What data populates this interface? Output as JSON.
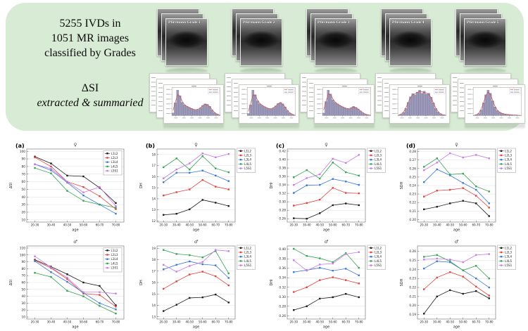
{
  "top_panel": {
    "bg_color": "#d8ebd4",
    "dataset_text": [
      "5255 IVDs in",
      "1051 MR images",
      "classified by Grades"
    ],
    "delta_si_line1": "ΔSI",
    "delta_si_line2": "extracted & summaried",
    "grades": [
      {
        "label": "Pfirrmann Grade 1"
      },
      {
        "label": "Pfirrmann Grade 2"
      },
      {
        "label": "Pfirrmann Grade 3"
      },
      {
        "label": "Pfirrmann Grade 4"
      },
      {
        "label": "Pfirrmann Grade 5"
      }
    ],
    "hist_bar_color": "#9b98b8",
    "hist_curve_color": "#d0453f",
    "histograms": [
      {
        "grade": "Pfirrmann Grade 1",
        "shape": "bimodal",
        "bars": [
          0.1,
          0.5,
          1.0,
          0.78,
          0.52,
          0.42,
          0.36,
          0.32,
          0.28,
          0.24,
          0.22,
          0.24,
          0.3,
          0.4,
          0.46,
          0.44,
          0.36,
          0.22,
          0.12,
          0.06,
          0.03
        ]
      },
      {
        "grade": "Pfirrmann Grade 2",
        "shape": "bimodal",
        "bars": [
          0.08,
          0.42,
          1.0,
          0.82,
          0.58,
          0.46,
          0.4,
          0.35,
          0.3,
          0.27,
          0.26,
          0.3,
          0.38,
          0.48,
          0.52,
          0.46,
          0.34,
          0.2,
          0.1,
          0.05,
          0.02
        ]
      },
      {
        "grade": "Pfirrmann Grade 3",
        "shape": "right-skewed",
        "bars": [
          0.1,
          0.55,
          1.0,
          0.85,
          0.62,
          0.52,
          0.46,
          0.4,
          0.35,
          0.31,
          0.28,
          0.26,
          0.3,
          0.36,
          0.32,
          0.26,
          0.18,
          0.11,
          0.06,
          0.03,
          0.02
        ]
      },
      {
        "grade": "Pfirrmann Grade 4",
        "shape": "broad",
        "bars": [
          0.02,
          0.05,
          0.12,
          0.28,
          0.52,
          0.74,
          0.86,
          0.82,
          0.92,
          1.0,
          0.88,
          0.96,
          0.84,
          0.88,
          0.72,
          0.5,
          0.28,
          0.14,
          0.07,
          0.03,
          0.02
        ]
      },
      {
        "grade": "Pfirrmann Grade 5",
        "shape": "narrow-peak",
        "bars": [
          0.01,
          0.03,
          0.08,
          0.22,
          0.5,
          0.82,
          1.0,
          0.88,
          0.58,
          0.34,
          0.2,
          0.13,
          0.09,
          0.06,
          0.05,
          0.04,
          0.03,
          0.02,
          0.02,
          0.01,
          0.01
        ]
      }
    ]
  },
  "chart_data": [
    {
      "type": "line",
      "panel_label": "(a)",
      "title": "♀",
      "xlabel": "age",
      "ylabel": "ΔSI",
      "categories": [
        "20-30",
        "30-40",
        "40-50",
        "50-60",
        "60-70",
        "70-80"
      ],
      "ylim": [
        7,
        103
      ],
      "yticks": [
        "10",
        "20",
        "30",
        "40",
        "50",
        "60",
        "70",
        "80",
        "90",
        "100"
      ],
      "legend_inside": true,
      "grid": true,
      "legend_position": "upper right",
      "series": [
        {
          "name": "L1L2",
          "color": "#1b1b1b",
          "values": [
            93,
            84,
            68,
            67,
            52,
            32
          ]
        },
        {
          "name": "L2L3",
          "color": "#e0433d",
          "values": [
            92,
            80,
            60,
            53,
            41,
            24
          ]
        },
        {
          "name": "L3L4",
          "color": "#3a76d6",
          "values": [
            83,
            75,
            59,
            42,
            30,
            18
          ]
        },
        {
          "name": "L4L5",
          "color": "#36a353",
          "values": [
            78,
            71,
            48,
            35,
            30,
            26
          ]
        },
        {
          "name": "L5S1",
          "color": "#c77be2",
          "values": [
            83,
            77,
            60,
            46,
            53,
            28
          ]
        }
      ]
    },
    {
      "type": "line",
      "panel_label": "(b)",
      "title": "♀",
      "xlabel": "age",
      "ylabel": "DH",
      "categories": [
        "20-30",
        "30-40",
        "40-50",
        "50-60",
        "60-70",
        "70-80"
      ],
      "ylim": [
        11.9,
        18.5
      ],
      "yticks": [
        "12",
        "13",
        "14",
        "15",
        "16",
        "17",
        "18"
      ],
      "legend_inside": false,
      "grid": true,
      "legend_position": "outside right",
      "series": [
        {
          "name": "L1L2",
          "color": "#1b1b1b",
          "values": [
            12.55,
            12.65,
            13.05,
            13.9,
            13.65,
            13.35
          ]
        },
        {
          "name": "L2L3",
          "color": "#e0433d",
          "values": [
            14.3,
            14.6,
            14.85,
            15.7,
            15.1,
            14.85
          ]
        },
        {
          "name": "L3L4",
          "color": "#3a76d6",
          "values": [
            15.5,
            16.35,
            16.35,
            16.55,
            16.1,
            15.6
          ]
        },
        {
          "name": "L4L5",
          "color": "#36a353",
          "values": [
            16.85,
            17.65,
            16.65,
            17.85,
            16.75,
            16.4
          ]
        },
        {
          "name": "L5S1",
          "color": "#c77be2",
          "values": [
            15.85,
            16.65,
            17.2,
            18.1,
            17.75,
            18.05
          ]
        }
      ]
    },
    {
      "type": "line",
      "panel_label": "(c)",
      "title": "♀",
      "xlabel": "age",
      "ylabel": "DHI",
      "categories": [
        "20-30",
        "30-40",
        "40-50",
        "50-60",
        "60-70",
        "70-80"
      ],
      "ylim": [
        0.252,
        0.425
      ],
      "yticks": [
        "0.26",
        "0.28",
        "0.30",
        "0.32",
        "0.34",
        "0.36",
        "0.38",
        "0.40",
        "0.42"
      ],
      "legend_inside": false,
      "grid": true,
      "legend_position": "outside right",
      "series": [
        {
          "name": "L1L2",
          "color": "#1b1b1b",
          "values": [
            0.261,
            0.26,
            0.273,
            0.292,
            0.296,
            0.292
          ]
        },
        {
          "name": "L2L3",
          "color": "#e0433d",
          "values": [
            0.291,
            0.297,
            0.305,
            0.333,
            0.321,
            0.32
          ]
        },
        {
          "name": "L3L4",
          "color": "#3a76d6",
          "values": [
            0.321,
            0.339,
            0.34,
            0.354,
            0.348,
            0.34
          ]
        },
        {
          "name": "L4L5",
          "color": "#36a353",
          "values": [
            0.358,
            0.375,
            0.355,
            0.393,
            0.37,
            0.362
          ]
        },
        {
          "name": "L5S1",
          "color": "#c77be2",
          "values": [
            0.34,
            0.356,
            0.365,
            0.402,
            0.392,
            0.411
          ]
        }
      ]
    },
    {
      "type": "line",
      "panel_label": "(d)",
      "title": "♀",
      "xlabel": "age",
      "ylabel": "SDH",
      "categories": [
        "20-30",
        "30-40",
        "40-50",
        "50-60",
        "60-70",
        "70-80"
      ],
      "ylim": [
        0.197,
        0.283
      ],
      "yticks": [
        "0.20",
        "0.21",
        "0.22",
        "0.23",
        "0.24",
        "0.25",
        "0.26",
        "0.27",
        "0.28"
      ],
      "legend_inside": false,
      "grid": true,
      "legend_position": "outside right",
      "series": [
        {
          "name": "L1L2",
          "color": "#1b1b1b",
          "values": [
            0.212,
            0.215,
            0.219,
            0.222,
            0.219,
            0.204
          ]
        },
        {
          "name": "L2L3",
          "color": "#e0433d",
          "values": [
            0.227,
            0.234,
            0.235,
            0.237,
            0.228,
            0.214
          ]
        },
        {
          "name": "L3L4",
          "color": "#3a76d6",
          "values": [
            0.244,
            0.259,
            0.252,
            0.243,
            0.235,
            0.219
          ]
        },
        {
          "name": "L4L5",
          "color": "#36a353",
          "values": [
            0.262,
            0.272,
            0.253,
            0.254,
            0.239,
            0.233
          ]
        },
        {
          "name": "L5S1",
          "color": "#c77be2",
          "values": [
            0.258,
            0.267,
            0.278,
            0.273,
            0.276,
            0.272
          ]
        }
      ]
    },
    {
      "type": "line",
      "panel_label": "",
      "title": "♂",
      "xlabel": "age",
      "ylabel": "ΔSI",
      "categories": [
        "20-30",
        "30-40",
        "40-50",
        "50-60",
        "60-70",
        "70-80"
      ],
      "ylim": [
        7,
        113
      ],
      "yticks": [
        "10",
        "20",
        "30",
        "40",
        "50",
        "60",
        "70",
        "80",
        "90",
        "100",
        "110"
      ],
      "legend_inside": true,
      "grid": true,
      "legend_position": "upper right",
      "series": [
        {
          "name": "L1L2",
          "color": "#1b1b1b",
          "values": [
            93,
            83,
            72,
            60,
            55,
            27
          ]
        },
        {
          "name": "L2L3",
          "color": "#e0433d",
          "values": [
            92,
            81,
            65,
            44,
            42,
            25
          ]
        },
        {
          "name": "L3L4",
          "color": "#3a76d6",
          "values": [
            91,
            75,
            61,
            45,
            30,
            21
          ]
        },
        {
          "name": "L4L5",
          "color": "#36a353",
          "values": [
            74,
            68,
            48,
            40,
            26,
            15
          ]
        },
        {
          "name": "L5S1",
          "color": "#c77be2",
          "values": [
            98,
            82,
            67,
            46,
            46,
            44
          ]
        }
      ]
    },
    {
      "type": "line",
      "panel_label": "",
      "title": "♂",
      "xlabel": "age",
      "ylabel": "DH",
      "categories": [
        "20-30",
        "30-40",
        "40-50",
        "50-60",
        "60-70",
        "70-80"
      ],
      "ylim": [
        12.8,
        19.2
      ],
      "yticks": [
        "13",
        "14",
        "15",
        "16",
        "17",
        "18",
        "19"
      ],
      "legend_inside": false,
      "grid": true,
      "legend_position": "outside right",
      "series": [
        {
          "name": "L1L2",
          "color": "#1b1b1b",
          "values": [
            13.5,
            14.05,
            14.65,
            14.7,
            14.95,
            14.25
          ]
        },
        {
          "name": "L2L3",
          "color": "#e0433d",
          "values": [
            15.45,
            16.1,
            16.7,
            16.95,
            16.55,
            15.75
          ]
        },
        {
          "name": "L3L4",
          "color": "#3a76d6",
          "values": [
            17.15,
            17.55,
            17.85,
            17.6,
            17.5,
            16.4
          ]
        },
        {
          "name": "L4L5",
          "color": "#36a353",
          "values": [
            18.85,
            18.5,
            18.4,
            18.2,
            18.75,
            16.8
          ]
        },
        {
          "name": "L5S1",
          "color": "#c77be2",
          "values": [
            17.55,
            16.95,
            17.45,
            17.8,
            18.85,
            18.75
          ]
        }
      ]
    },
    {
      "type": "line",
      "panel_label": "",
      "title": "♂",
      "xlabel": "age",
      "ylabel": "DHI",
      "categories": [
        "20-30",
        "30-40",
        "40-50",
        "50-60",
        "60-70",
        "70-80"
      ],
      "ylim": [
        0.253,
        0.407
      ],
      "yticks": [
        "0.26",
        "0.28",
        "0.30",
        "0.32",
        "0.34",
        "0.36",
        "0.38",
        "0.40"
      ],
      "legend_inside": false,
      "grid": true,
      "legend_position": "outside right",
      "series": [
        {
          "name": "L1L2",
          "color": "#1b1b1b",
          "values": [
            0.272,
            0.28,
            0.296,
            0.299,
            0.306,
            0.299
          ]
        },
        {
          "name": "L2L3",
          "color": "#e0433d",
          "values": [
            0.31,
            0.32,
            0.335,
            0.341,
            0.335,
            0.328
          ]
        },
        {
          "name": "L3L4",
          "color": "#3a76d6",
          "values": [
            0.352,
            0.356,
            0.361,
            0.355,
            0.359,
            0.345
          ]
        },
        {
          "name": "L4L5",
          "color": "#36a353",
          "values": [
            0.401,
            0.386,
            0.381,
            0.373,
            0.392,
            0.361
          ]
        },
        {
          "name": "L5S1",
          "color": "#c77be2",
          "values": [
            0.377,
            0.355,
            0.368,
            0.37,
            0.39,
            0.394
          ]
        }
      ]
    },
    {
      "type": "line",
      "panel_label": "",
      "title": "♂",
      "xlabel": "age",
      "ylabel": "SDH",
      "categories": [
        "20-30",
        "30-40",
        "40-50",
        "50-60",
        "60-70",
        "70-80"
      ],
      "ylim": [
        0.185,
        0.266
      ],
      "yticks": [
        "0.19",
        "0.20",
        "0.21",
        "0.22",
        "0.23",
        "0.24",
        "0.25",
        "0.26"
      ],
      "legend_inside": false,
      "grid": true,
      "legend_position": "outside right",
      "series": [
        {
          "name": "L1L2",
          "color": "#1b1b1b",
          "values": [
            0.191,
            0.21,
            0.217,
            0.213,
            0.216,
            0.208
          ]
        },
        {
          "name": "L2L3",
          "color": "#e0433d",
          "values": [
            0.218,
            0.231,
            0.237,
            0.232,
            0.221,
            0.211
          ]
        },
        {
          "name": "L3L4",
          "color": "#3a76d6",
          "values": [
            0.241,
            0.249,
            0.248,
            0.239,
            0.23,
            0.22
          ]
        },
        {
          "name": "L4L5",
          "color": "#36a353",
          "values": [
            0.254,
            0.256,
            0.249,
            0.239,
            0.244,
            0.23
          ]
        },
        {
          "name": "L5S1",
          "color": "#c77be2",
          "values": [
            0.251,
            0.252,
            0.251,
            0.248,
            0.256,
            0.257
          ]
        }
      ]
    }
  ]
}
